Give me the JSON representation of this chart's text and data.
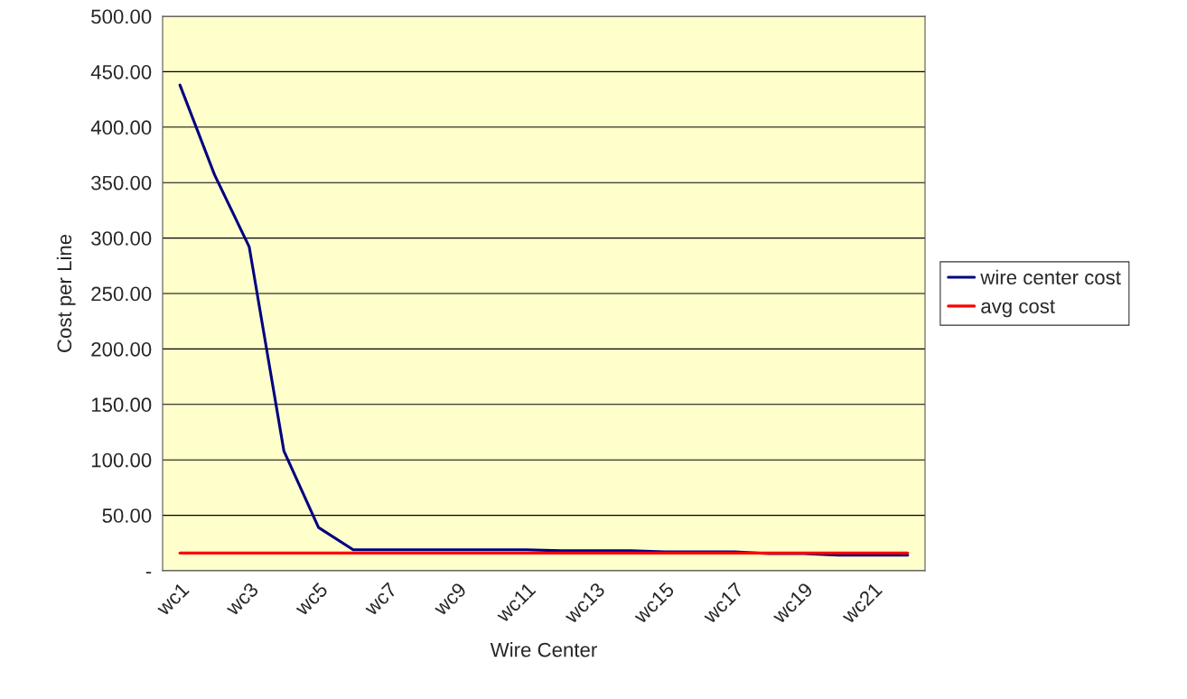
{
  "chart_data": {
    "type": "line",
    "xlabel": "Wire Center",
    "ylabel": "Cost per Line",
    "categories": [
      "wc1",
      null,
      "wc3",
      null,
      "wc5",
      null,
      "wc7",
      null,
      "wc9",
      null,
      "wc11",
      null,
      "wc13",
      null,
      "wc15",
      null,
      "wc17",
      null,
      "wc19",
      null,
      "wc21",
      null
    ],
    "series": [
      {
        "name": "wire center cost",
        "color": "#000080",
        "values": [
          438,
          357,
          292,
          108,
          39,
          19,
          19,
          19,
          19,
          19,
          19,
          18,
          18,
          18,
          17,
          17,
          17,
          15.5,
          15.5,
          14,
          14,
          14
        ]
      },
      {
        "name": "avg cost",
        "color": "#ff0000",
        "values": [
          16,
          16,
          16,
          16,
          16,
          16,
          16,
          16,
          16,
          16,
          16,
          16,
          16,
          16,
          16,
          16,
          16,
          16,
          16,
          16,
          16,
          16
        ]
      }
    ],
    "ylim": [
      0,
      500
    ],
    "yticks": [
      {
        "value": 0,
        "label": "-"
      },
      {
        "value": 50,
        "label": "50.00"
      },
      {
        "value": 100,
        "label": "100.00"
      },
      {
        "value": 150,
        "label": "150.00"
      },
      {
        "value": 200,
        "label": "200.00"
      },
      {
        "value": 250,
        "label": "250.00"
      },
      {
        "value": 300,
        "label": "300.00"
      },
      {
        "value": 350,
        "label": "350.00"
      },
      {
        "value": 400,
        "label": "400.00"
      },
      {
        "value": 450,
        "label": "450.00"
      },
      {
        "value": 500,
        "label": "500.00"
      }
    ],
    "grid": "y",
    "legend": "right",
    "marker": "none",
    "line_style": "solid"
  }
}
